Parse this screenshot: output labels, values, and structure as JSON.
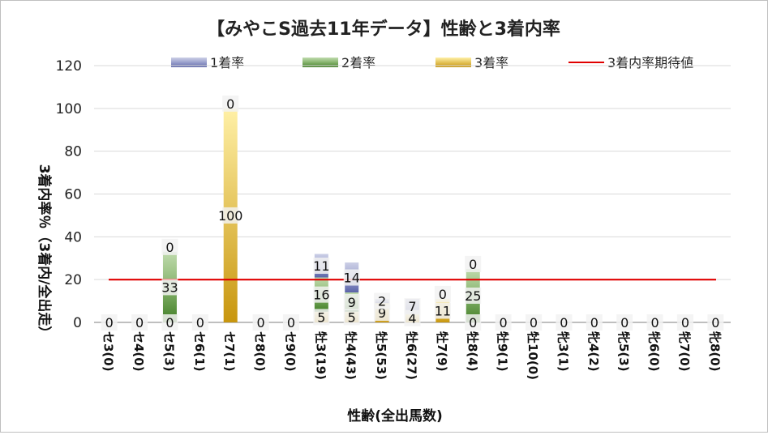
{
  "chart_data": {
    "type": "bar",
    "title": "【みやこS過去11年データ】性齢と3着内率",
    "xlabel": "性齢(全出馬数)",
    "ylabel": "3着内率％（3着内/全出走）",
    "ylim": [
      0,
      120
    ],
    "yticks": [
      "0",
      "20",
      "40",
      "60",
      "80",
      "100",
      "120"
    ],
    "categories": [
      "セ3(0)",
      "セ4(0)",
      "セ5(3)",
      "セ6(1)",
      "セ7(1)",
      "セ8(0)",
      "セ9(0)",
      "牡3(19)",
      "牡4(43)",
      "牡5(53)",
      "牡6(27)",
      "牡7(9)",
      "牡8(4)",
      "牡9(1)",
      "牡10(0)",
      "牝3(1)",
      "牝4(2)",
      "牝5(3)",
      "牝6(0)",
      "牝7(0)",
      "牝8(0)"
    ],
    "series": [
      {
        "name": "1着率",
        "color": "#8c93c8",
        "values": [
          0,
          0,
          0,
          0,
          0,
          0,
          0,
          11,
          14,
          2,
          7,
          0,
          0,
          0,
          0,
          0,
          0,
          0,
          0,
          0,
          0
        ]
      },
      {
        "name": "2着率",
        "color": "#70ad47",
        "values": [
          0,
          0,
          33,
          0,
          0,
          0,
          0,
          16,
          9,
          0,
          0,
          0,
          25,
          0,
          0,
          0,
          0,
          0,
          0,
          0,
          0
        ]
      },
      {
        "name": "3着率",
        "color": "#e2b84a",
        "values": [
          0,
          0,
          0,
          0,
          100,
          0,
          0,
          5,
          5,
          9,
          4,
          11,
          0,
          0,
          0,
          0,
          0,
          0,
          0,
          0,
          0
        ]
      }
    ],
    "reference_line": {
      "name": "3着内率期待値",
      "value": 20,
      "color": "#e00000"
    },
    "grid": true,
    "legend": "top"
  }
}
